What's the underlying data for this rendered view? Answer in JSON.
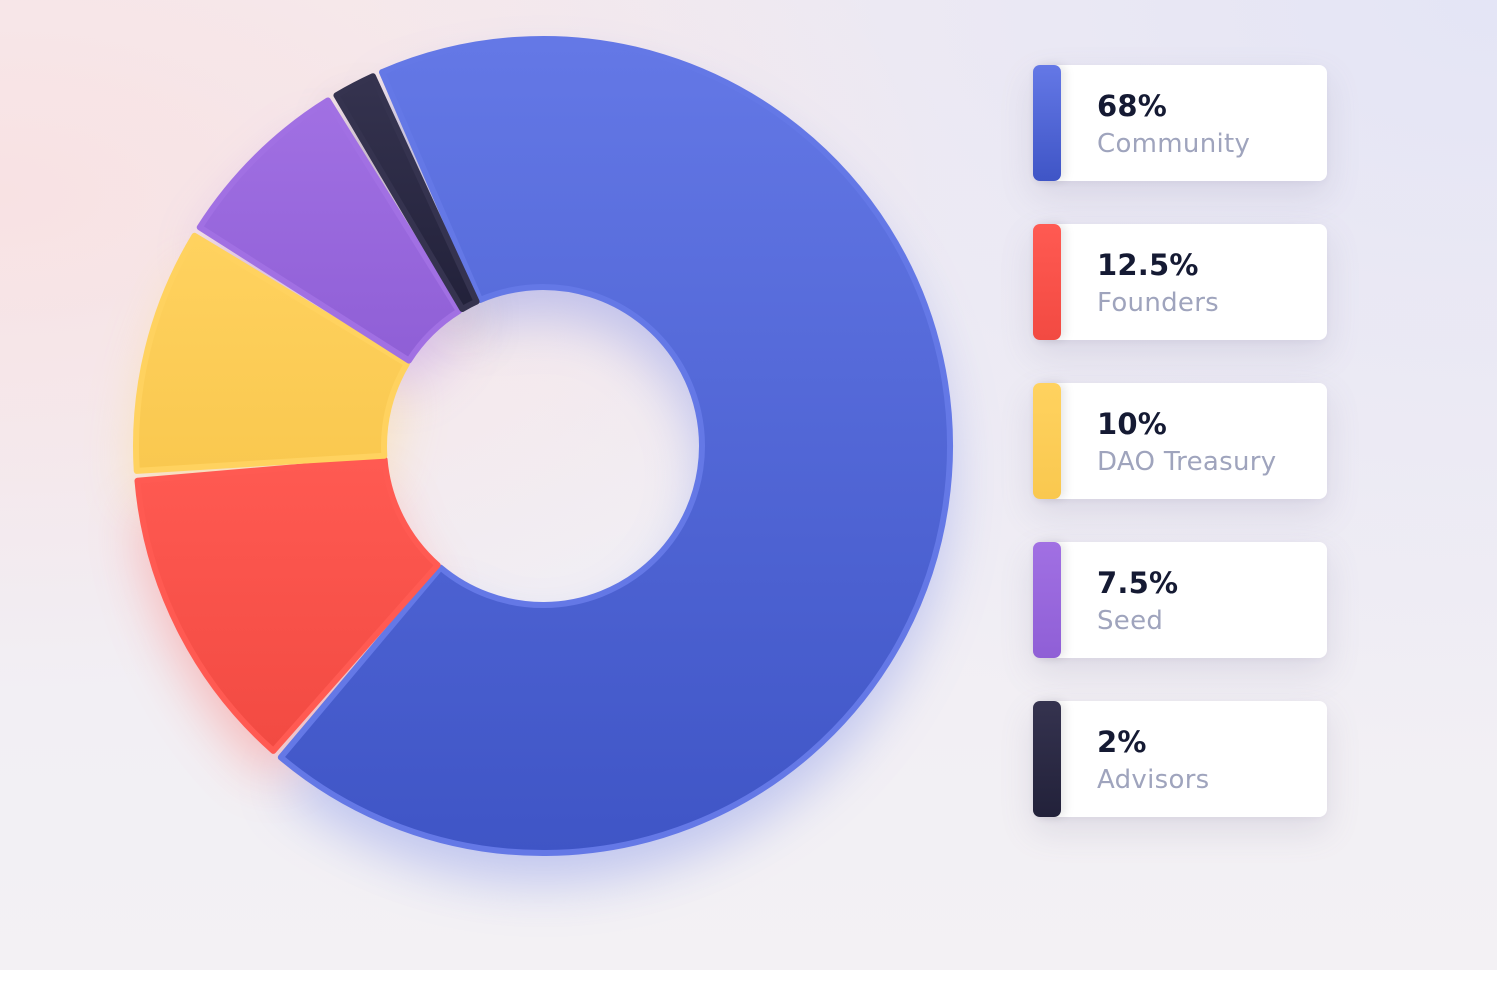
{
  "chart_data": {
    "type": "pie",
    "donut": true,
    "title": "",
    "legend_position": "right",
    "slices": [
      {
        "label": "Community",
        "display": "68%",
        "value": 68,
        "color": "#6478e6",
        "color_dark": "#3f55c6"
      },
      {
        "label": "Founders",
        "display": "12.5%",
        "value": 12.5,
        "color": "#ff5a52",
        "color_dark": "#f24a42"
      },
      {
        "label": "DAO Treasury",
        "display": "10%",
        "value": 10,
        "color": "#ffd25f",
        "color_dark": "#f9c84f"
      },
      {
        "label": "Seed",
        "display": "7.5%",
        "value": 7.5,
        "color": "#a170e3",
        "color_dark": "#8f5fd6"
      },
      {
        "label": "Advisors",
        "display": "2%",
        "value": 2,
        "color": "#35334f",
        "color_dark": "#22213a"
      }
    ]
  }
}
